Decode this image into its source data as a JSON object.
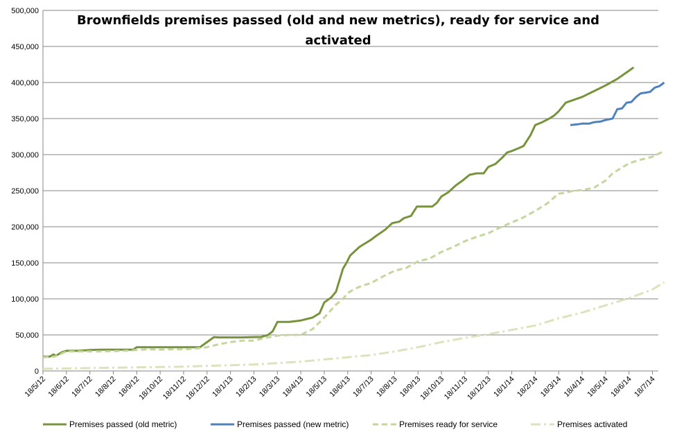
{
  "chart_data": {
    "type": "line",
    "title_line1": "Brownfields premises passed (old and new metrics), ready for service and",
    "title_line2": "activated",
    "xlabel": "",
    "ylabel": "",
    "ylim": [
      0,
      500000
    ],
    "yticks": [
      "0",
      "50,000",
      "100,000",
      "150,000",
      "200,000",
      "250,000",
      "300,000",
      "350,000",
      "400,000",
      "450,000",
      "500,000"
    ],
    "xticks": [
      "18/5/12",
      "18/6/12",
      "18/7/12",
      "18/8/12",
      "18/9/12",
      "18/10/12",
      "18/11/12",
      "18/12/12",
      "18/1/13",
      "18/2/13",
      "18/3/13",
      "18/4/13",
      "18/5/13",
      "18/6/13",
      "18/7/13",
      "18/8/13",
      "18/9/13",
      "18/10/13",
      "18/11/13",
      "18/12/13",
      "18/1/14",
      "18/2/14",
      "18/3/14",
      "18/4/14",
      "18/5/14",
      "18/6/14",
      "18/7/14"
    ],
    "grid": true,
    "legend_position": "bottom",
    "series": [
      {
        "name": "Premises passed (old metric)",
        "color": "#77933C",
        "dash": "solid",
        "x": [
          0,
          0.15,
          0.3,
          0.45,
          0.55,
          0.8,
          1,
          1.5,
          2,
          2.5,
          3,
          3.5,
          3.85,
          4,
          4.5,
          5,
          5.5,
          6,
          6.5,
          6.7,
          7,
          7.3,
          7.5,
          8,
          8.5,
          9,
          9.3,
          9.6,
          9.8,
          10,
          10.5,
          11,
          11.5,
          11.8,
          12,
          12.3,
          12.5,
          12.8,
          12.95,
          13.1,
          13.5,
          13.8,
          14,
          14.2,
          14.6,
          14.9,
          15.2,
          15.4,
          15.7,
          15.95,
          16.05,
          16.3,
          16.6,
          16.8,
          17,
          17.3,
          17.6,
          17.9,
          18.2,
          18.5,
          18.8,
          19,
          19.3,
          19.6,
          19.8,
          20,
          20.3,
          20.5,
          20.8,
          21,
          21.3,
          21.6,
          21.8,
          22,
          22.2,
          22.3,
          23,
          23.5,
          24,
          24.5,
          24.9,
          25.2
        ],
        "values": [
          20000,
          20000,
          20000,
          23000,
          21000,
          26000,
          28000,
          28000,
          29000,
          29500,
          29500,
          29500,
          29500,
          33000,
          33000,
          33000,
          33000,
          33000,
          33000,
          33000,
          40000,
          47000,
          46500,
          46500,
          46500,
          47000,
          47000,
          50000,
          55000,
          68000,
          68000,
          70000,
          74000,
          80000,
          95000,
          102000,
          110000,
          142000,
          150000,
          160000,
          172000,
          178000,
          182000,
          187000,
          196000,
          205000,
          207000,
          212000,
          215000,
          228000,
          228000,
          228000,
          228000,
          233000,
          242000,
          248000,
          257000,
          264000,
          272000,
          274000,
          274000,
          283000,
          287000,
          296000,
          303000,
          305000,
          309000,
          312000,
          327000,
          341000,
          345000,
          350000,
          354000,
          360000,
          368000,
          372000,
          380000,
          388000,
          396000,
          405000,
          414000,
          421000
        ]
      },
      {
        "name": "Premises passed (new metric)",
        "color": "#4F81BD",
        "dash": "solid",
        "x": [
          22.5,
          22.8,
          23,
          23.3,
          23.5,
          23.8,
          24,
          24.3,
          24.5,
          24.7,
          24.9,
          25.1,
          25.3,
          25.5,
          25.7,
          25.9,
          26.1,
          26.3,
          26.5
        ],
        "values": [
          341000,
          342000,
          343000,
          343000,
          345000,
          346000,
          348000,
          350000,
          363000,
          364000,
          372000,
          373000,
          380000,
          385000,
          386000,
          387000,
          393000,
          395000,
          400000
        ]
      },
      {
        "name": "Premises ready for service",
        "color": "#C3D69B",
        "dash": "dashed",
        "x": [
          0,
          0.5,
          1,
          1.5,
          2,
          2.5,
          3,
          3.5,
          4,
          4.5,
          5,
          5.5,
          6,
          6.5,
          7,
          7.5,
          8,
          8.5,
          9,
          9.5,
          10,
          10.5,
          11,
          11.5,
          12,
          12.5,
          12.8,
          13,
          13.3,
          13.6,
          14,
          14.5,
          15,
          15.5,
          16,
          16.5,
          17,
          17.5,
          18,
          18.5,
          19,
          19.5,
          20,
          20.5,
          21,
          21.5,
          22,
          22.3,
          22.5,
          23,
          23.5,
          24,
          24.3,
          24.5,
          25,
          25.5,
          26,
          26.5
        ],
        "values": [
          19000,
          20000,
          27000,
          27000,
          27000,
          27000,
          27500,
          28000,
          29000,
          30000,
          29500,
          30000,
          30000,
          31000,
          33000,
          37000,
          40000,
          42000,
          42000,
          46000,
          49000,
          50000,
          50000,
          58000,
          74000,
          92000,
          100000,
          108000,
          114000,
          118000,
          122000,
          131000,
          139000,
          143000,
          152000,
          156000,
          165000,
          172000,
          180000,
          186000,
          191000,
          199000,
          206000,
          213000,
          222000,
          232000,
          246000,
          247000,
          249000,
          251000,
          254000,
          264000,
          274000,
          278000,
          288000,
          293000,
          297000,
          305000
        ]
      },
      {
        "name": "Premises activated",
        "color": "#D8E4BC",
        "dash": "dashdot",
        "x": [
          0,
          1,
          2,
          3,
          4,
          5,
          6,
          7,
          8,
          9,
          10,
          11,
          12,
          13,
          14,
          15,
          16,
          17,
          18,
          19,
          20,
          21,
          22,
          23,
          24,
          25,
          26,
          26.5
        ],
        "values": [
          3000,
          3500,
          4000,
          4500,
          5000,
          5500,
          6000,
          7000,
          8000,
          9000,
          11000,
          13000,
          16000,
          19000,
          22000,
          27000,
          33000,
          40000,
          46000,
          51000,
          57000,
          63000,
          73000,
          81000,
          91000,
          101000,
          113000,
          123000
        ]
      }
    ]
  }
}
